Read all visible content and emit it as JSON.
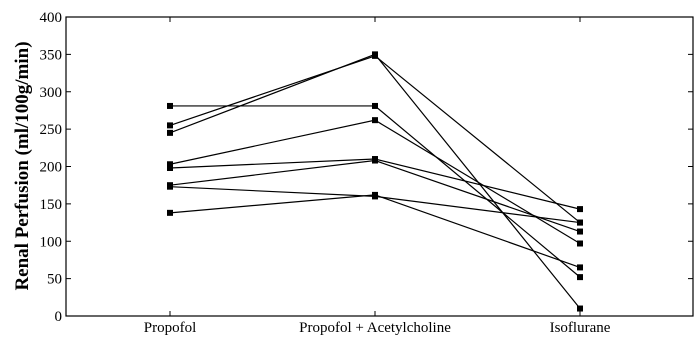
{
  "chart_data": {
    "type": "line",
    "categories": [
      "Propofol",
      "Propofol + Acetylcholine",
      "Isoflurane"
    ],
    "ylabel": "Renal Perfusion (ml/100g/min)",
    "xlabel": "",
    "title": "",
    "ylim": [
      0,
      400
    ],
    "yticks": [
      0,
      50,
      100,
      150,
      200,
      250,
      300,
      350,
      400
    ],
    "grid": false,
    "line_color": "#000000",
    "marker": "square",
    "series": [
      {
        "values": [
          281,
          281,
          52
        ]
      },
      {
        "values": [
          255,
          348,
          125
        ]
      },
      {
        "values": [
          245,
          350,
          10
        ]
      },
      {
        "values": [
          203,
          262,
          97
        ]
      },
      {
        "values": [
          198,
          210,
          143
        ]
      },
      {
        "values": [
          175,
          208,
          113
        ]
      },
      {
        "values": [
          173,
          160,
          125
        ]
      },
      {
        "values": [
          138,
          162,
          65
        ]
      }
    ]
  }
}
